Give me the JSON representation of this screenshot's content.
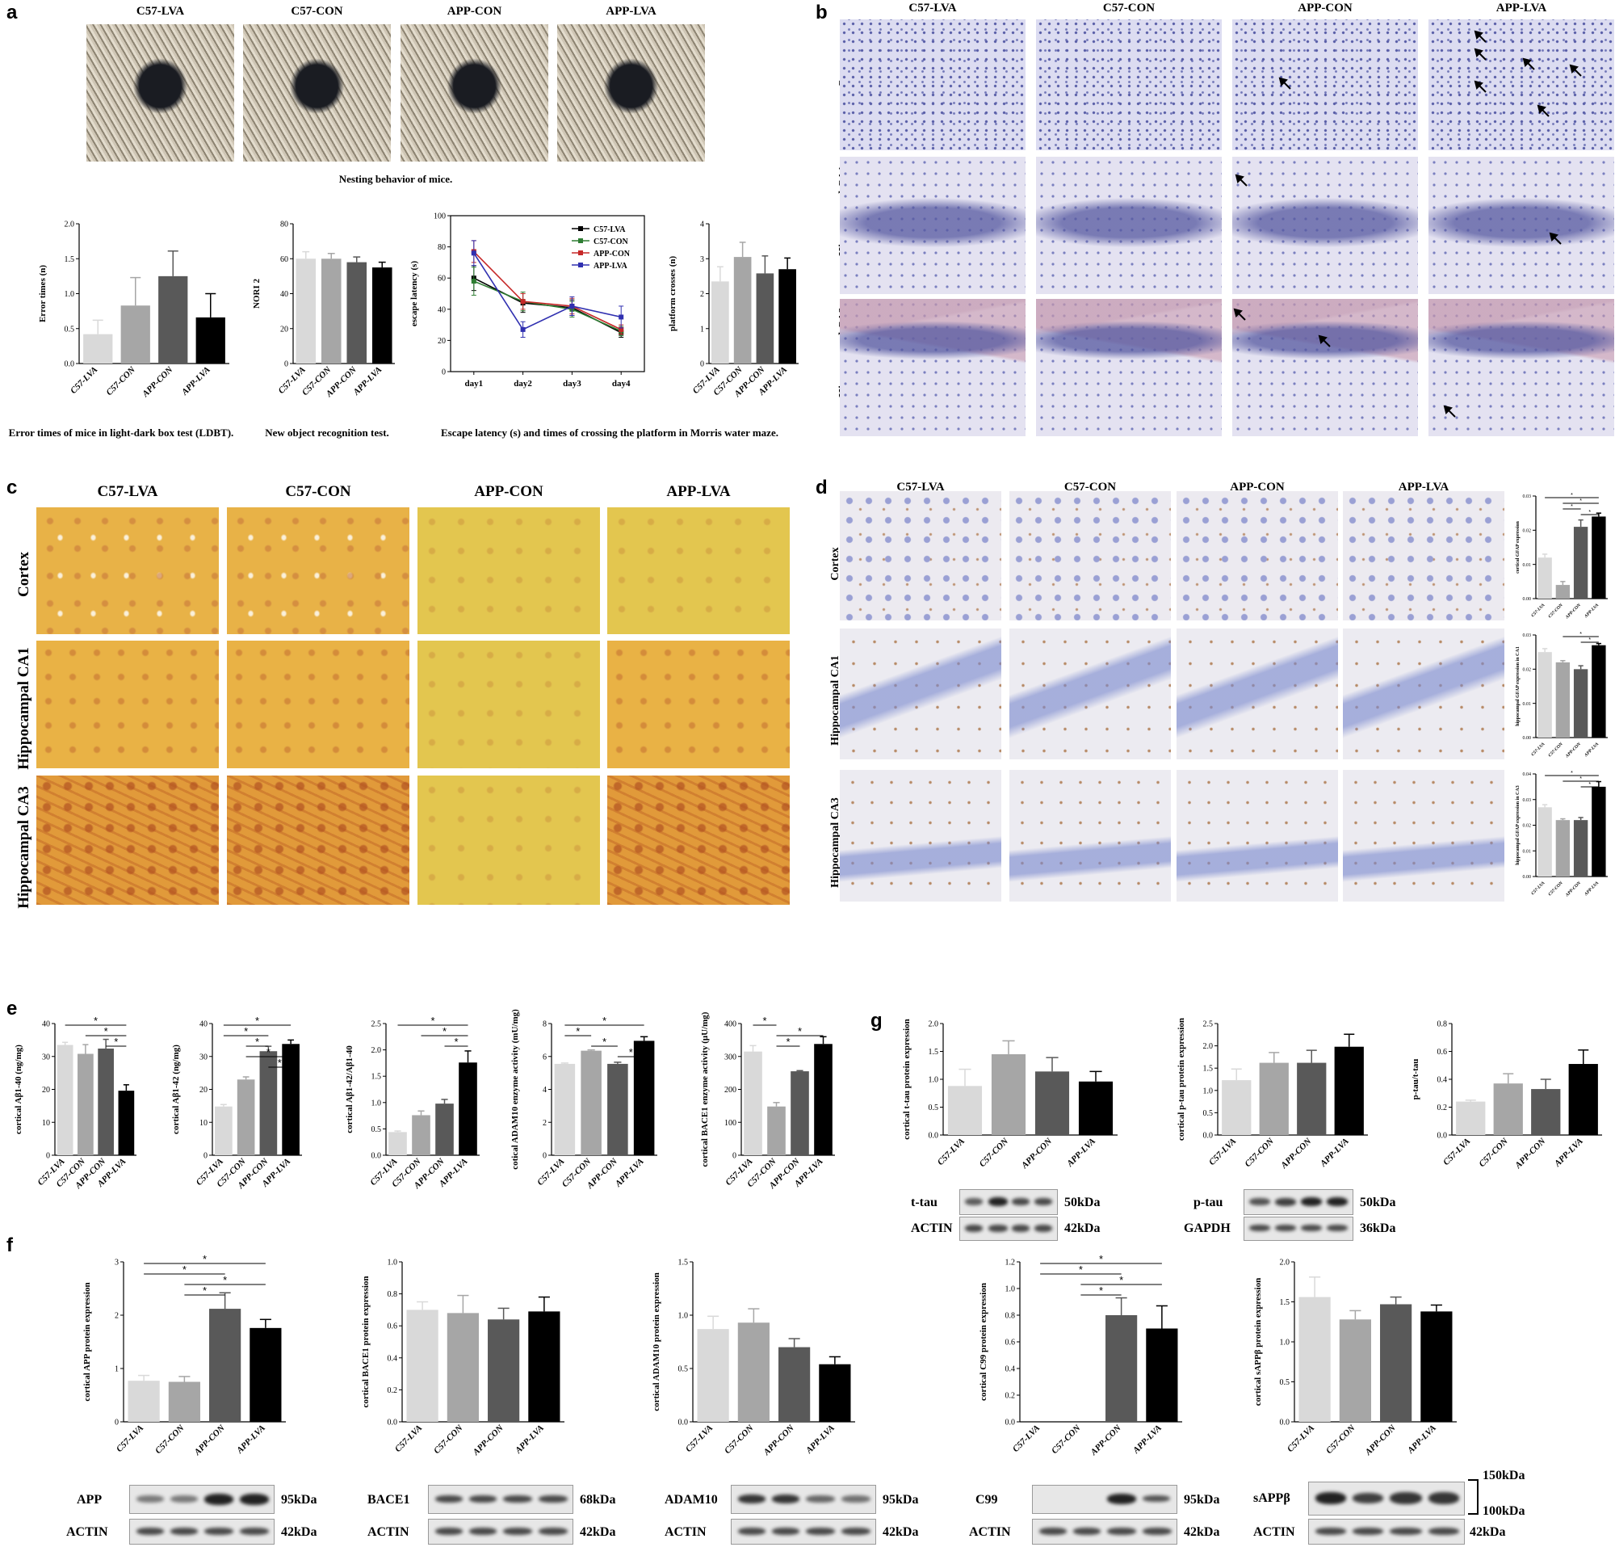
{
  "panel_labels": {
    "a": "a",
    "b": "b",
    "c": "c",
    "d": "d",
    "e": "e",
    "f": "f",
    "g": "g"
  },
  "groups": [
    "C57-LVA",
    "C57-CON",
    "APP-CON",
    "APP-LVA"
  ],
  "group_colors": [
    "#d9d9d9",
    "#a6a6a6",
    "#595959",
    "#000000"
  ],
  "regions": [
    "Cortex",
    "Hippocampal CA1",
    "Hippocampal CA3"
  ],
  "captions": {
    "nest": "Nesting behavior of mice.",
    "ldbt": "Error times of mice in light-dark box test (LDBT).",
    "nor": "New object recognition test.",
    "mwm": "Escape latency (s) and times of crossing the platform in Morris water maze."
  },
  "chart_data": [
    {
      "id": "ldbt",
      "type": "bar",
      "ylabel": "Error times (n)",
      "categories": [
        "C57-LVA",
        "C57-CON",
        "APP-CON",
        "APP-LVA"
      ],
      "values": [
        0.42,
        0.83,
        1.25,
        0.66
      ],
      "errors": [
        0.2,
        0.4,
        0.36,
        0.34
      ],
      "ylim": [
        0,
        2.0
      ],
      "ticks": [
        "0.0",
        "0.5",
        "1.0",
        "1.5",
        "2.0"
      ],
      "tick_values": [
        0,
        0.5,
        1,
        1.5,
        2
      ],
      "sig": []
    },
    {
      "id": "nor",
      "type": "bar",
      "ylabel": "NORI 2",
      "categories": [
        "C57-LVA",
        "C57-CON",
        "APP-CON",
        "APP-LVA"
      ],
      "values": [
        60,
        60,
        58,
        55
      ],
      "errors": [
        4,
        3,
        3,
        3
      ],
      "ylim": [
        0,
        80
      ],
      "ticks": [
        "0",
        "20",
        "40",
        "60",
        "80"
      ],
      "tick_values": [
        0,
        20,
        40,
        60,
        80
      ],
      "sig": []
    },
    {
      "id": "mwm",
      "type": "line",
      "ylabel": "escape latency (s)",
      "x": [
        "day1",
        "day2",
        "day3",
        "day4"
      ],
      "ylim": [
        0,
        100
      ],
      "ticks": [
        "0",
        "20",
        "40",
        "60",
        "80",
        "100"
      ],
      "tick_values": [
        0,
        20,
        40,
        60,
        80,
        100
      ],
      "legend_position": "top-right",
      "series": [
        {
          "name": "C57-LVA",
          "color": "#000000",
          "values": [
            60,
            44,
            41,
            25
          ],
          "errors": [
            8,
            6,
            5,
            3
          ]
        },
        {
          "name": "C57-CON",
          "color": "#2e7d32",
          "values": [
            58,
            45,
            40,
            26
          ],
          "errors": [
            9,
            6,
            5,
            3
          ]
        },
        {
          "name": "APP-CON",
          "color": "#c62828",
          "values": [
            77,
            45,
            42,
            27
          ],
          "errors": [
            7,
            5,
            5,
            3
          ]
        },
        {
          "name": "APP-LVA",
          "color": "#3030b0",
          "values": [
            76,
            27,
            42,
            35
          ],
          "errors": [
            8,
            5,
            6,
            7
          ]
        }
      ]
    },
    {
      "id": "platform",
      "type": "bar",
      "ylabel": "platform crosses (n)",
      "categories": [
        "C57-LVA",
        "C57-CON",
        "APP-CON",
        "APP-LVA"
      ],
      "values": [
        2.35,
        3.05,
        2.58,
        2.7
      ],
      "errors": [
        0.42,
        0.42,
        0.5,
        0.32
      ],
      "ylim": [
        0,
        4
      ],
      "ticks": [
        "0",
        "1",
        "2",
        "3",
        "4"
      ],
      "tick_values": [
        0,
        1,
        2,
        3,
        4
      ],
      "sig": []
    },
    {
      "id": "gfap_cortex",
      "type": "bar",
      "ylabel": "cortical GFAP expression",
      "categories": [
        "C57-LVA",
        "C57-CON",
        "APP-CON",
        "APP-LVA"
      ],
      "values": [
        0.012,
        0.004,
        0.021,
        0.024
      ],
      "errors": [
        0.001,
        0.001,
        0.002,
        0.001
      ],
      "ylim": [
        0,
        0.03
      ],
      "ticks": [
        "0.00",
        "0.01",
        "0.02",
        "0.03"
      ],
      "tick_values": [
        0,
        0.01,
        0.02,
        0.03
      ],
      "sig": [
        [
          0,
          3
        ],
        [
          1,
          3
        ],
        [
          1,
          2
        ],
        [
          2,
          3
        ]
      ]
    },
    {
      "id": "gfap_ca1",
      "type": "bar",
      "ylabel": "hippocampal GFAP expression in CA1",
      "categories": [
        "C57-LVA",
        "C57-CON",
        "APP-CON",
        "APP-LVA"
      ],
      "values": [
        0.025,
        0.022,
        0.02,
        0.027
      ],
      "errors": [
        0.001,
        0.0005,
        0.001,
        0.0005
      ],
      "ylim": [
        0,
        0.03
      ],
      "ticks": [
        "0.00",
        "0.01",
        "0.02",
        "0.03"
      ],
      "tick_values": [
        0,
        0.01,
        0.02,
        0.03
      ],
      "sig": [
        [
          1,
          3
        ],
        [
          2,
          3
        ]
      ]
    },
    {
      "id": "gfap_ca3",
      "type": "bar",
      "ylabel": "hippocampal GFAP expression in CA3",
      "categories": [
        "C57-LVA",
        "C57-CON",
        "APP-CON",
        "APP-LVA"
      ],
      "values": [
        0.027,
        0.022,
        0.022,
        0.035
      ],
      "errors": [
        0.001,
        0.0005,
        0.001,
        0.002
      ],
      "ylim": [
        0,
        0.04
      ],
      "ticks": [
        "0.00",
        "0.01",
        "0.02",
        "0.03",
        "0.04"
      ],
      "tick_values": [
        0,
        0.01,
        0.02,
        0.03,
        0.04
      ],
      "sig": [
        [
          0,
          3
        ],
        [
          1,
          3
        ],
        [
          2,
          3
        ]
      ]
    },
    {
      "id": "ab40",
      "type": "bar",
      "ylabel": "cortical Aβ1-40 (ng/mg)",
      "categories": [
        "C57-LVA",
        "C57-CON",
        "APP-CON",
        "APP-LVA"
      ],
      "values": [
        33.5,
        30.8,
        32.4,
        19.6
      ],
      "errors": [
        0.8,
        2.8,
        2.8,
        1.8
      ],
      "ylim": [
        0,
        40
      ],
      "ticks": [
        "0",
        "10",
        "20",
        "30",
        "40"
      ],
      "tick_values": [
        0,
        10,
        20,
        30,
        40
      ],
      "sig": [
        [
          0,
          3
        ],
        [
          1,
          3
        ],
        [
          2,
          3
        ]
      ]
    },
    {
      "id": "ab42",
      "type": "bar",
      "ylabel": "cortical Aβ1-42 (ng/mg)",
      "categories": [
        "C57-LVA",
        "C57-CON",
        "APP-CON",
        "APP-LVA"
      ],
      "values": [
        14.8,
        23,
        31.6,
        33.8
      ],
      "errors": [
        0.6,
        0.8,
        1.5,
        1.2
      ],
      "ylim": [
        0,
        40
      ],
      "ticks": [
        "0",
        "10",
        "20",
        "30",
        "40"
      ],
      "tick_values": [
        0,
        10,
        20,
        30,
        40
      ],
      "sig": [
        [
          0,
          3
        ],
        [
          0,
          2
        ],
        [
          1,
          2
        ],
        [
          1,
          3
        ],
        [
          2,
          3
        ]
      ]
    },
    {
      "id": "ratio",
      "type": "bar",
      "ylabel": "cortical Aβ1-42/Aβ1-40",
      "categories": [
        "C57-LVA",
        "C57-CON",
        "APP-CON",
        "APP-LVA"
      ],
      "values": [
        0.44,
        0.76,
        0.98,
        1.76
      ],
      "errors": [
        0.02,
        0.08,
        0.08,
        0.22
      ],
      "ylim": [
        0,
        2.5
      ],
      "ticks": [
        "0.0",
        "0.5",
        "1.0",
        "1.5",
        "2.0",
        "2.5"
      ],
      "tick_values": [
        0,
        0.5,
        1,
        1.5,
        2,
        2.5
      ],
      "sig": [
        [
          0,
          3
        ],
        [
          1,
          3
        ],
        [
          2,
          3
        ]
      ]
    },
    {
      "id": "adam10_act",
      "type": "bar",
      "ylabel": "cotical ADAM10 enzyme activity (mU/mg)",
      "categories": [
        "C57-LVA",
        "C57-CON",
        "APP-CON",
        "APP-LVA"
      ],
      "values": [
        5.55,
        6.35,
        5.55,
        6.95
      ],
      "errors": [
        0.05,
        0.05,
        0.1,
        0.25
      ],
      "ylim": [
        0,
        8
      ],
      "ticks": [
        "0",
        "2",
        "4",
        "6",
        "8"
      ],
      "tick_values": [
        0,
        2,
        4,
        6,
        8
      ],
      "sig": [
        [
          0,
          3
        ],
        [
          0,
          1
        ],
        [
          1,
          2
        ],
        [
          2,
          3
        ]
      ]
    },
    {
      "id": "bace1_act",
      "type": "bar",
      "ylabel": "cortical BACE1 enzyme activity (μU/mg)",
      "categories": [
        "C57-LVA",
        "C57-CON",
        "APP-CON",
        "APP-LVA"
      ],
      "values": [
        315,
        148,
        255,
        338
      ],
      "errors": [
        18,
        12,
        2,
        22
      ],
      "ylim": [
        0,
        400
      ],
      "ticks": [
        "0",
        "100",
        "200",
        "300",
        "400"
      ],
      "tick_values": [
        0,
        100,
        200,
        300,
        400
      ],
      "sig": [
        [
          0,
          1
        ],
        [
          1,
          3
        ],
        [
          1,
          2
        ]
      ]
    },
    {
      "id": "app",
      "type": "bar",
      "ylabel": "cortical APP protein expression",
      "categories": [
        "C57-LVA",
        "C57-CON",
        "APP-CON",
        "APP-LVA"
      ],
      "values": [
        0.77,
        0.75,
        2.12,
        1.76
      ],
      "errors": [
        0.1,
        0.1,
        0.3,
        0.16
      ],
      "ylim": [
        0,
        3
      ],
      "ticks": [
        "0",
        "1",
        "2",
        "3"
      ],
      "tick_values": [
        0,
        1,
        2,
        3
      ],
      "sig": [
        [
          0,
          3
        ],
        [
          0,
          2
        ],
        [
          1,
          3
        ],
        [
          1,
          2
        ]
      ]
    },
    {
      "id": "bace1",
      "type": "bar",
      "ylabel": "cortical BACE1 protein expression",
      "categories": [
        "C57-LVA",
        "C57-CON",
        "APP-CON",
        "APP-LVA"
      ],
      "values": [
        0.7,
        0.68,
        0.64,
        0.69
      ],
      "errors": [
        0.05,
        0.11,
        0.07,
        0.09
      ],
      "ylim": [
        0,
        1.0
      ],
      "ticks": [
        "0.0",
        "0.2",
        "0.4",
        "0.6",
        "0.8",
        "1.0"
      ],
      "tick_values": [
        0,
        0.2,
        0.4,
        0.6,
        0.8,
        1
      ],
      "sig": []
    },
    {
      "id": "adam10",
      "type": "bar",
      "ylabel": "cortical ADAM10 protein expression",
      "categories": [
        "C57-LVA",
        "C57-CON",
        "APP-CON",
        "APP-LVA"
      ],
      "values": [
        0.87,
        0.93,
        0.7,
        0.54
      ],
      "errors": [
        0.12,
        0.13,
        0.08,
        0.07
      ],
      "ylim": [
        0,
        1.5
      ],
      "ticks": [
        "0.0",
        "0.5",
        "1.0",
        "1.5"
      ],
      "tick_values": [
        0,
        0.5,
        1,
        1.5
      ],
      "sig": []
    },
    {
      "id": "c99",
      "type": "bar",
      "ylabel": "cortical C99 protein expression",
      "categories": [
        "C57-LVA",
        "C57-CON",
        "APP-CON",
        "APP-LVA"
      ],
      "values": [
        0,
        0,
        0.8,
        0.7
      ],
      "errors": [
        0,
        0,
        0.13,
        0.17
      ],
      "ylim": [
        0,
        1.2
      ],
      "ticks": [
        "0.0",
        "0.2",
        "0.4",
        "0.6",
        "0.8",
        "1.0",
        "1.2"
      ],
      "tick_values": [
        0,
        0.2,
        0.4,
        0.6,
        0.8,
        1,
        1.2
      ],
      "sig": [
        [
          0,
          3
        ],
        [
          0,
          2
        ],
        [
          1,
          3
        ],
        [
          1,
          2
        ]
      ]
    },
    {
      "id": "sappb",
      "type": "bar",
      "ylabel": "cortical sAPPβ protein expression",
      "categories": [
        "C57-LVA",
        "C57-CON",
        "APP-CON",
        "APP-LVA"
      ],
      "values": [
        1.56,
        1.28,
        1.47,
        1.38
      ],
      "errors": [
        0.25,
        0.11,
        0.09,
        0.08
      ],
      "ylim": [
        0,
        2.0
      ],
      "ticks": [
        "0.0",
        "0.5",
        "1.0",
        "1.5",
        "2.0"
      ],
      "tick_values": [
        0,
        0.5,
        1,
        1.5,
        2
      ],
      "sig": []
    },
    {
      "id": "ttau",
      "type": "bar",
      "ylabel": "cortical t-tau protein expression",
      "categories": [
        "C57-LVA",
        "C57-CON",
        "APP-CON",
        "APP-LVA"
      ],
      "values": [
        0.88,
        1.45,
        1.14,
        0.96
      ],
      "errors": [
        0.3,
        0.24,
        0.25,
        0.18
      ],
      "ylim": [
        0,
        2.0
      ],
      "ticks": [
        "0.0",
        "0.5",
        "1.0",
        "1.5",
        "2.0"
      ],
      "tick_values": [
        0,
        0.5,
        1,
        1.5,
        2
      ],
      "sig": []
    },
    {
      "id": "ptau",
      "type": "bar",
      "ylabel": "cortical p-tau protein expression",
      "categories": [
        "C57-LVA",
        "C57-CON",
        "APP-CON",
        "APP-LVA"
      ],
      "values": [
        1.23,
        1.62,
        1.62,
        1.98
      ],
      "errors": [
        0.25,
        0.23,
        0.28,
        0.28
      ],
      "ylim": [
        0,
        2.5
      ],
      "ticks": [
        "0.0",
        "0.5",
        "1.0",
        "1.5",
        "2.0",
        "2.5"
      ],
      "tick_values": [
        0,
        0.5,
        1,
        1.5,
        2,
        2.5
      ],
      "sig": []
    },
    {
      "id": "ratio_tau",
      "type": "bar",
      "ylabel": "p-tau/t-tau",
      "categories": [
        "C57-LVA",
        "C57-CON",
        "APP-CON",
        "APP-LVA"
      ],
      "values": [
        0.24,
        0.37,
        0.33,
        0.51
      ],
      "errors": [
        0.01,
        0.07,
        0.07,
        0.1
      ],
      "ylim": [
        0,
        0.8
      ],
      "ticks": [
        "0.0",
        "0.2",
        "0.4",
        "0.6",
        "0.8"
      ],
      "tick_values": [
        0,
        0.2,
        0.4,
        0.6,
        0.8
      ],
      "sig": []
    }
  ],
  "blots": {
    "ttau": {
      "protein": "t-tau",
      "protein_kda": "50kDa",
      "control": "ACTIN",
      "control_kda": "42kDa"
    },
    "ptau": {
      "protein": "p-tau",
      "protein_kda": "50kDa",
      "control": "GAPDH",
      "control_kda": "36kDa"
    },
    "app": {
      "protein": "APP",
      "protein_kda": "95kDa",
      "control": "ACTIN",
      "control_kda": "42kDa"
    },
    "bace1": {
      "protein": "BACE1",
      "protein_kda": "68kDa",
      "control": "ACTIN",
      "control_kda": "42kDa"
    },
    "adam10": {
      "protein": "ADAM10",
      "protein_kda": "95kDa",
      "control": "ACTIN",
      "control_kda": "42kDa"
    },
    "c99": {
      "protein": "C99",
      "protein_kda": "95kDa",
      "control": "ACTIN",
      "control_kda": "42kDa"
    },
    "sappb": {
      "protein": "sAPPβ",
      "protein_kda_top": "150kDa",
      "protein_kda_bottom": "100kDa",
      "control": "ACTIN",
      "control_kda": "42kDa"
    }
  },
  "sig_symbol": "*"
}
